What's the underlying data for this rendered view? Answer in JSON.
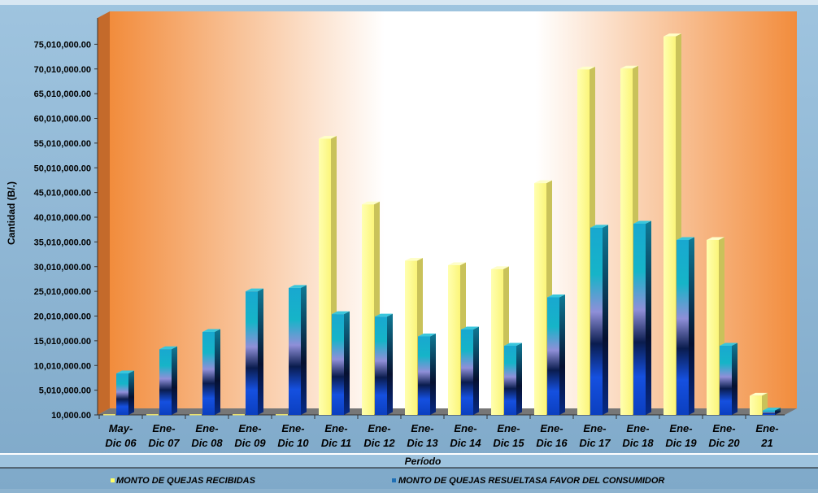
{
  "chart_data": {
    "type": "bar",
    "title": "",
    "xlabel": "Período",
    "ylabel": "Cantidad  (B/.)",
    "ylim": [
      10000,
      80010000
    ],
    "yticks": [
      10000,
      5010000,
      10010000,
      15010000,
      20010000,
      25010000,
      30010000,
      35010000,
      40010000,
      45010000,
      50010000,
      55010000,
      60010000,
      65010000,
      70010000,
      75010000
    ],
    "ytick_labels": [
      "10,000.00",
      "5,010,000.00",
      "10,010,000.00",
      "15,010,000.00",
      "20,010,000.00",
      "25,010,000.00",
      "30,010,000.00",
      "35,010,000.00",
      "40,010,000.00",
      "45,010,000.00",
      "50,010,000.00",
      "55,010,000.00",
      "60,010,000.00",
      "65,010,000.00",
      "70,010,000.00",
      "75,010,000.00"
    ],
    "categories": [
      [
        "May-",
        "Dic 06"
      ],
      [
        "Ene-",
        "Dic 07"
      ],
      [
        "Ene-",
        "Dic 08"
      ],
      [
        "Ene-",
        "Dic 09"
      ],
      [
        "Ene-",
        "Dic 10"
      ],
      [
        "Ene-",
        "Dic 11"
      ],
      [
        "Ene-",
        "Dic 12"
      ],
      [
        "Ene-",
        "Dic 13"
      ],
      [
        "Ene-",
        "Dic 14"
      ],
      [
        "Ene-",
        "Dic 15"
      ],
      [
        "Ene-",
        "Dic 16"
      ],
      [
        "Ene-",
        "Dic 17"
      ],
      [
        "Ene-",
        "Dic 18"
      ],
      [
        "Ene-",
        "Dic 19"
      ],
      [
        "Ene-",
        "Dic 20"
      ],
      [
        "Ene-",
        "21"
      ]
    ],
    "series": [
      {
        "name": "MONTO DE QUEJAS RECIBIDAS",
        "color": "#ffff99",
        "values": [
          0,
          0,
          0,
          0,
          0,
          55900000,
          42600000,
          31200000,
          30300000,
          29500000,
          46900000,
          69900000,
          70100000,
          76600000,
          35400000,
          3900000
        ]
      },
      {
        "name": "MONTO DE QUEJAS RESUELTASA FAVOR DEL CONSUMIDOR",
        "color": "#1f6fb5",
        "values": [
          8400000,
          13300000,
          16800000,
          25000000,
          25700000,
          20400000,
          19900000,
          15900000,
          17300000,
          14000000,
          23800000,
          37900000,
          38700000,
          35400000,
          14000000,
          900000
        ]
      }
    ],
    "grid": false,
    "legend_position": "bottom"
  }
}
